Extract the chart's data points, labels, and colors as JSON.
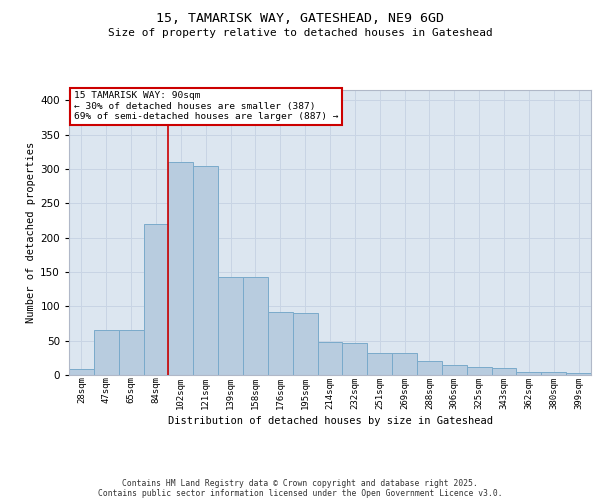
{
  "title_line1": "15, TAMARISK WAY, GATESHEAD, NE9 6GD",
  "title_line2": "Size of property relative to detached houses in Gateshead",
  "xlabel": "Distribution of detached houses by size in Gateshead",
  "ylabel": "Number of detached properties",
  "categories": [
    "28sqm",
    "47sqm",
    "65sqm",
    "84sqm",
    "102sqm",
    "121sqm",
    "139sqm",
    "158sqm",
    "176sqm",
    "195sqm",
    "214sqm",
    "232sqm",
    "251sqm",
    "269sqm",
    "288sqm",
    "306sqm",
    "325sqm",
    "343sqm",
    "362sqm",
    "380sqm",
    "399sqm"
  ],
  "values": [
    9,
    65,
    65,
    220,
    310,
    305,
    143,
    143,
    92,
    90,
    48,
    47,
    32,
    32,
    21,
    14,
    11,
    10,
    5,
    5,
    3
  ],
  "bar_color": "#b8ccdf",
  "bar_edge_color": "#7aaacb",
  "red_line_after_index": 3,
  "annotation_text": "15 TAMARISK WAY: 90sqm\n← 30% of detached houses are smaller (387)\n69% of semi-detached houses are larger (887) →",
  "annotation_box_facecolor": "#ffffff",
  "annotation_box_edgecolor": "#cc0000",
  "ylim_max": 415,
  "yticks": [
    0,
    50,
    100,
    150,
    200,
    250,
    300,
    350,
    400
  ],
  "grid_color": "#c8d4e4",
  "axes_bg_color": "#dce6f0",
  "footer_line1": "Contains HM Land Registry data © Crown copyright and database right 2025.",
  "footer_line2": "Contains public sector information licensed under the Open Government Licence v3.0."
}
